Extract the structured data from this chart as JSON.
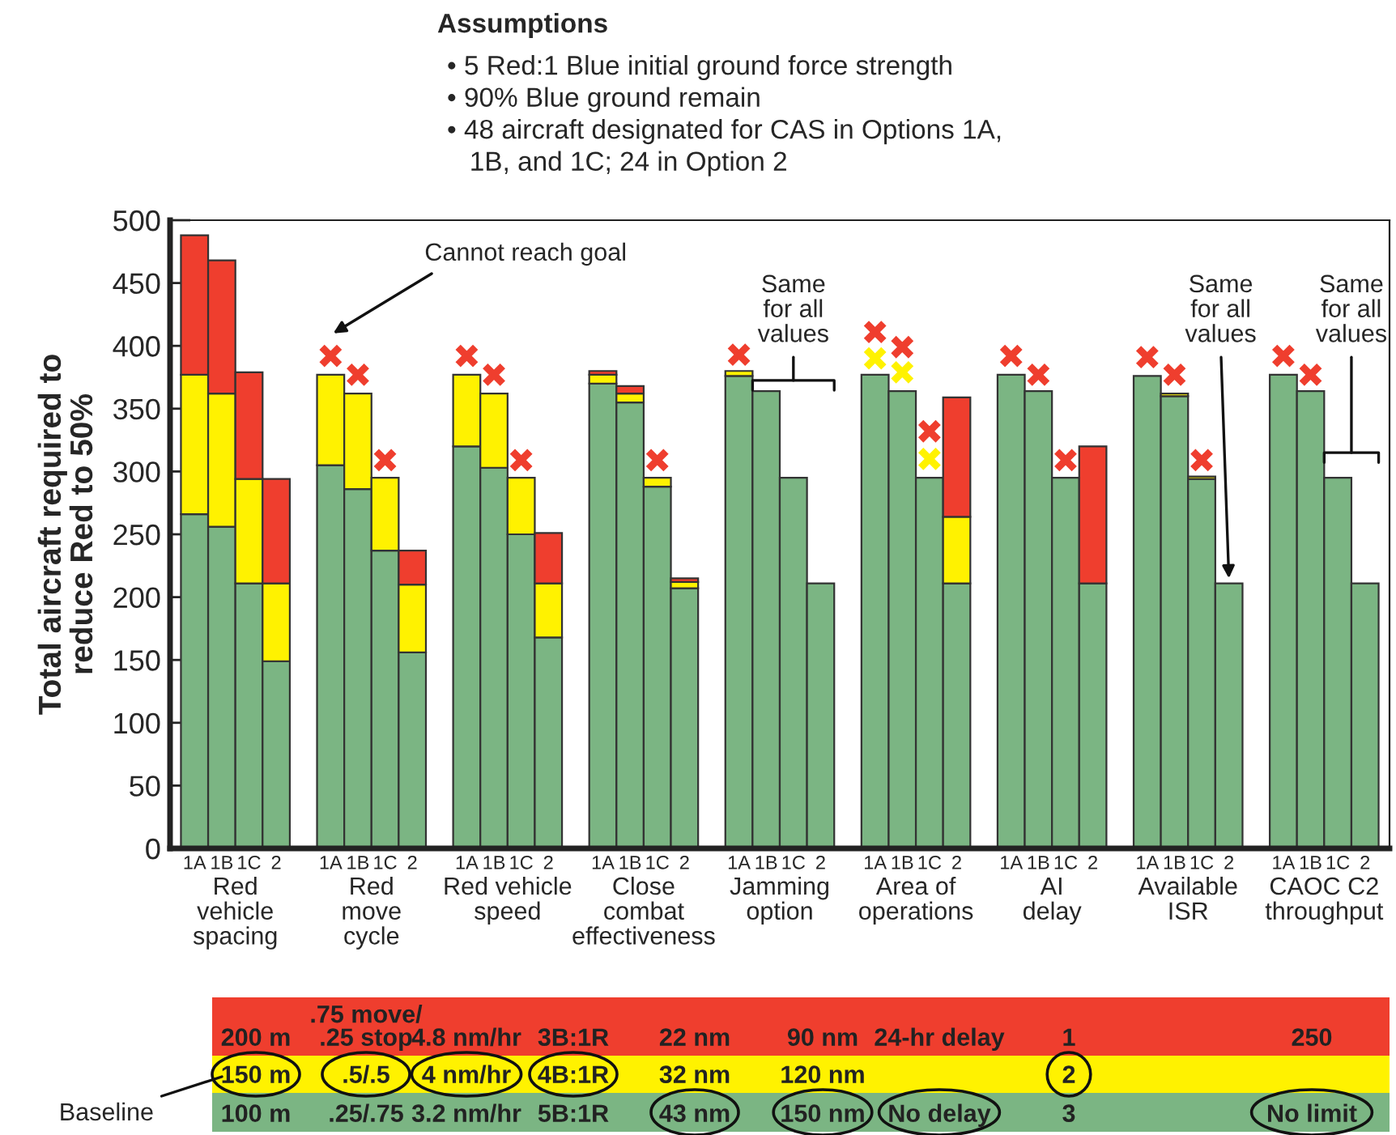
{
  "chart_data": [
    {
      "type": "bar",
      "stacked": true,
      "title": "Assumptions",
      "subtitle": "• 5 Red:1 Blue initial ground force strength\n• 90% Blue ground remain\n• 48 aircraft designated for CAS in Options 1A,\n   1B, and 1C; 24 in Option 2",
      "categories": [
        "1A",
        "1B",
        "1C",
        "2",
        null,
        "1A",
        "1B",
        "1C",
        "2",
        null,
        "1A",
        "1B",
        "1C",
        "2",
        null,
        "1A",
        "1B",
        "1C",
        "2",
        null,
        "1A",
        "1B",
        "1C",
        "2",
        null,
        "1A",
        "1B",
        "1C",
        "2",
        null,
        "1A",
        "1B",
        "1C",
        "2",
        null,
        "1A",
        "1B",
        "1C",
        "2",
        null,
        "1A",
        "1B",
        "1C",
        "2"
      ],
      "ylabel": "Total aircraft required to\nreduce Red to 50%",
      "ylim": [
        0,
        500
      ],
      "yticks": [
        0,
        50,
        100,
        150,
        200,
        250,
        300,
        350,
        400,
        450,
        500
      ],
      "series": [
        {
          "color": "#7bb583",
          "values": [
            266,
            256,
            211,
            149,
            null,
            305,
            286,
            237,
            156,
            null,
            320,
            303,
            250,
            168,
            null,
            370,
            355,
            288,
            207,
            null,
            376,
            364,
            295,
            211,
            null,
            377,
            364,
            295,
            211,
            null,
            377,
            364,
            295,
            211,
            null,
            376,
            360,
            294,
            211,
            null,
            377,
            364,
            295,
            211
          ]
        },
        {
          "color": "#fff200",
          "values": [
            111,
            106,
            83,
            62,
            null,
            72,
            76,
            58,
            54,
            null,
            57,
            59,
            45,
            43,
            null,
            7,
            7,
            7,
            5,
            null,
            4,
            null,
            null,
            null,
            null,
            null,
            null,
            null,
            53,
            null,
            null,
            null,
            null,
            null,
            null,
            null,
            2,
            2,
            null,
            null,
            null,
            null,
            null,
            null
          ]
        },
        {
          "color": "#ef3e2e",
          "values": [
            111,
            106,
            85,
            83,
            null,
            null,
            null,
            null,
            27,
            null,
            null,
            null,
            null,
            40,
            null,
            3,
            6,
            null,
            3,
            null,
            null,
            null,
            null,
            null,
            null,
            null,
            null,
            null,
            95,
            null,
            null,
            null,
            null,
            109,
            null,
            null,
            null,
            null,
            null,
            null,
            null,
            null,
            null,
            null
          ]
        },
        {
          "type": "scatter",
          "marker": "cross",
          "color": "#ef3e2e",
          "values": [
            null,
            null,
            null,
            null,
            null,
            392,
            377,
            309,
            null,
            null,
            392,
            377,
            309,
            null,
            null,
            null,
            null,
            309,
            null,
            null,
            393,
            null,
            null,
            null,
            null,
            411,
            399,
            332,
            null,
            null,
            392,
            377,
            309,
            null,
            null,
            391,
            377,
            309,
            null,
            null,
            392,
            377,
            null,
            null
          ]
        },
        {
          "type": "scatter",
          "marker": "cross",
          "color": "#fff200",
          "values": [
            null,
            null,
            null,
            null,
            null,
            null,
            null,
            null,
            null,
            null,
            null,
            null,
            null,
            null,
            null,
            null,
            null,
            null,
            null,
            null,
            null,
            null,
            null,
            null,
            null,
            390,
            379,
            310,
            null,
            null,
            null,
            null,
            null,
            null,
            null,
            null,
            null,
            null,
            null,
            null,
            null,
            null,
            null,
            null
          ]
        }
      ],
      "annotations": [
        "Red\nvehicle\nspacing",
        "Red\nmove\ncycle",
        "Red vehicle\nspeed",
        "Close\ncombat\neffectiveness",
        "Jamming\noption",
        "Area of\noperations",
        "AI\ndelay",
        "Available\nISR",
        "CAOC C2\nthroughput",
        "Cannot reach goal",
        "Same\nfor all\nvalues",
        "Same\nfor all\nvalues",
        "Same\nfor all\nvalues"
      ]
    },
    {
      "type": "other",
      "colors": [
        "#ef3e2e",
        "#fff200",
        "#7bb583"
      ],
      "cell_labels": [
        [
          "200 m",
          ".75 move/\n.25 stop",
          "4.8 nm/hr",
          "3B:1R",
          "22 nm",
          "90 nm",
          "24-hr delay",
          "1",
          "250"
        ],
        [
          "150 m",
          ".5/.5",
          "4 nm/hr",
          "4B:1R",
          "32 nm",
          "120 nm",
          null,
          "2",
          null
        ],
        [
          "100 m",
          ".25/.75",
          "3.2 nm/hr",
          "5B:1R",
          "43 nm",
          "150 nm",
          "No delay",
          "3",
          "No limit"
        ]
      ],
      "annotations": [
        "Baseline"
      ]
    }
  ]
}
